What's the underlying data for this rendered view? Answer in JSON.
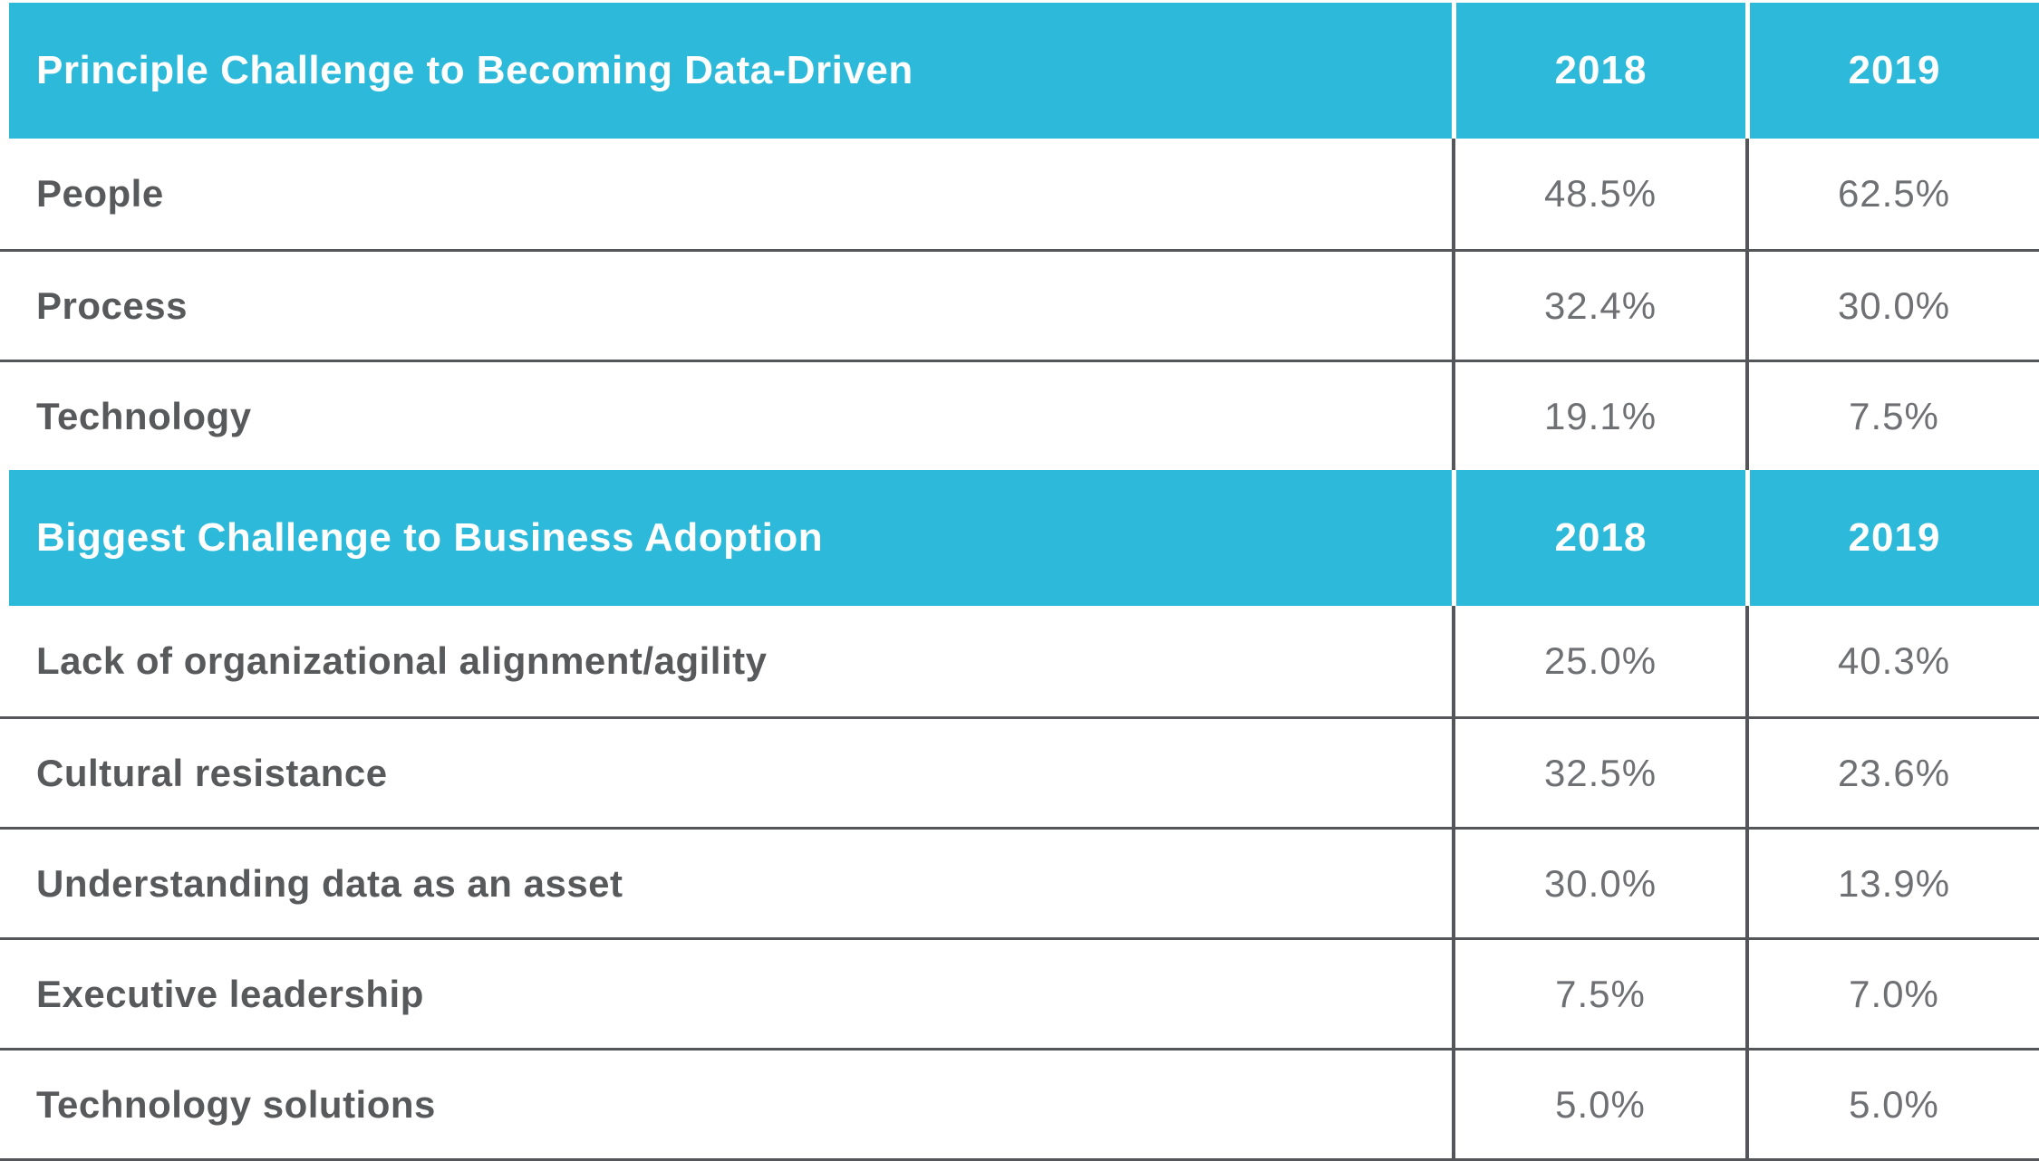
{
  "colors": {
    "header_background": "#2CB9DA",
    "header_text": "#FFFFFF",
    "row_label_text": "#58595B",
    "value_text": "#6F7073",
    "grid_line": "#55565A",
    "header_divider": "#FFFFFF"
  },
  "table": {
    "sections": [
      {
        "header": {
          "label": "Principle Challenge to Becoming Data-Driven",
          "col1": "2018",
          "col2": "2019"
        },
        "rows": [
          {
            "label": "People",
            "y2018": "48.5%",
            "y2019": "62.5%"
          },
          {
            "label": "Process",
            "y2018": "32.4%",
            "y2019": "30.0%"
          },
          {
            "label": "Technology",
            "y2018": "19.1%",
            "y2019": "7.5%"
          }
        ]
      },
      {
        "header": {
          "label": "Biggest Challenge to Business Adoption",
          "col1": "2018",
          "col2": "2019"
        },
        "rows": [
          {
            "label": "Lack of organizational alignment/agility",
            "y2018": "25.0%",
            "y2019": "40.3%"
          },
          {
            "label": "Cultural resistance",
            "y2018": "32.5%",
            "y2019": "23.6%"
          },
          {
            "label": "Understanding data as an asset",
            "y2018": "30.0%",
            "y2019": "13.9%"
          },
          {
            "label": "Executive leadership",
            "y2018": "7.5%",
            "y2019": "7.0%"
          },
          {
            "label": "Technology solutions",
            "y2018": "5.0%",
            "y2019": "5.0%"
          }
        ]
      }
    ]
  },
  "chart_data": {
    "type": "table",
    "sections": [
      {
        "title": "Principle Challenge to Becoming Data-Driven",
        "columns": [
          "2018",
          "2019"
        ],
        "rows": [
          [
            "People",
            48.5,
            62.5
          ],
          [
            "Process",
            32.4,
            30.0
          ],
          [
            "Technology",
            19.1,
            7.5
          ]
        ]
      },
      {
        "title": "Biggest Challenge to Business Adoption",
        "columns": [
          "2018",
          "2019"
        ],
        "rows": [
          [
            "Lack of organizational alignment/agility",
            25.0,
            40.3
          ],
          [
            "Cultural resistance",
            32.5,
            23.6
          ],
          [
            "Understanding data as an asset",
            30.0,
            13.9
          ],
          [
            "Executive leadership",
            7.5,
            7.0
          ],
          [
            "Technology solutions",
            5.0,
            5.0
          ]
        ]
      }
    ],
    "units": "percent",
    "notes": "Two-section survey comparison table, values are percentages for 2018 vs 2019"
  }
}
